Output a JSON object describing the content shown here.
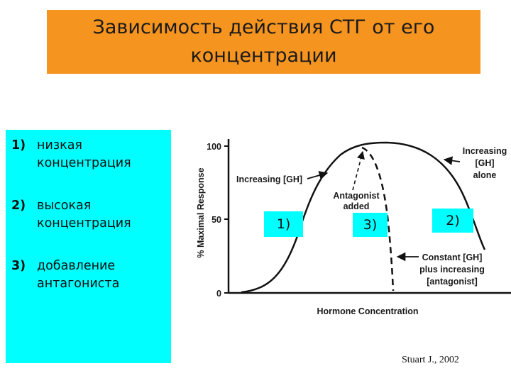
{
  "title": {
    "line1": "Зависимость действия СТГ от его",
    "line2": "концентрации"
  },
  "legend_list": [
    {
      "num": "1)",
      "line1": "низкая",
      "line2": "концентрация"
    },
    {
      "num": "2)",
      "line1": "высокая",
      "line2": "концентрация"
    },
    {
      "num": "3)",
      "line1": "добавление",
      "line2": "антагониста"
    }
  ],
  "graph": {
    "y_axis_label": "% Maximal Response",
    "x_axis_label": "Hormone Concentration",
    "y_ticks": [
      "100",
      "50",
      "0"
    ],
    "annotations": {
      "increasing_gh": "Increasing [GH]",
      "antagonist_line1": "Antagonist",
      "antagonist_line2": "added",
      "increasing_alone_line1": "Increasing",
      "increasing_alone_line2": "[GH]",
      "increasing_alone_line3": "alone",
      "constant_line1": "Constant [GH]",
      "constant_line2": "plus increasing",
      "constant_line3": "[antagonist]"
    }
  },
  "region_tags": {
    "tag1": "1)",
    "tag2": "2)",
    "tag3": "3)"
  },
  "citation": "Stuart J., 2002",
  "colors": {
    "title_bg": "#f5941f",
    "list_bg": "#00ffff",
    "curve": "#111111"
  }
}
